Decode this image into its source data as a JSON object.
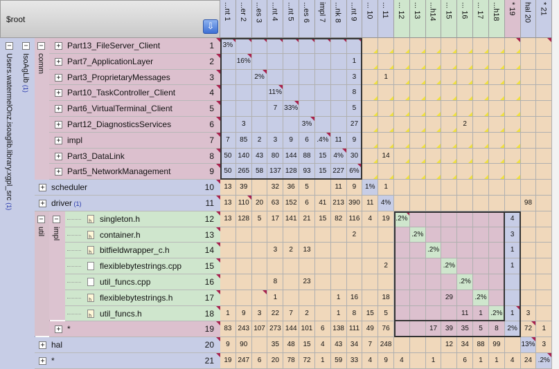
{
  "header": {
    "root_label": "$root",
    "sort_button_icon": "down-arrow-icon"
  },
  "tree": {
    "root_group": {
      "label": "Users.watermelOnz.isoaglib.library.xgpl_src",
      "count": "(1)"
    },
    "lib_group": {
      "label": "IsoAgLib",
      "count": "(1)"
    },
    "comm_group": {
      "label": "comm"
    },
    "util_group": {
      "label": "util"
    },
    "impl_group": {
      "label": "impl"
    }
  },
  "rows": [
    {
      "label": "Part13_FileServer_Client",
      "num": "1",
      "count": ""
    },
    {
      "label": "Part7_ApplicationLayer",
      "num": "2",
      "count": ""
    },
    {
      "label": "Part3_ProprietaryMessages",
      "num": "3",
      "count": ""
    },
    {
      "label": "Part10_TaskController_Client",
      "num": "4",
      "count": ""
    },
    {
      "label": "Part6_VirtualTerminal_Client",
      "num": "5",
      "count": ""
    },
    {
      "label": "Part12_DiagnosticsServices",
      "num": "6",
      "count": ""
    },
    {
      "label": "impl",
      "num": "7",
      "count": ""
    },
    {
      "label": "Part3_DataLink",
      "num": "8",
      "count": ""
    },
    {
      "label": "Part5_NetworkManagement",
      "num": "9",
      "count": ""
    },
    {
      "label": "scheduler",
      "num": "10",
      "count": ""
    },
    {
      "label": "driver",
      "num": "11",
      "count": "(1)"
    },
    {
      "label": "singleton.h",
      "num": "12",
      "count": ""
    },
    {
      "label": "container.h",
      "num": "13",
      "count": ""
    },
    {
      "label": "bitfieldwrapper_c.h",
      "num": "14",
      "count": ""
    },
    {
      "label": "flexiblebytestrings.cpp",
      "num": "15",
      "count": ""
    },
    {
      "label": "util_funcs.cpp",
      "num": "16",
      "count": ""
    },
    {
      "label": "flexiblebytestrings.h",
      "num": "17",
      "count": ""
    },
    {
      "label": "util_funcs.h",
      "num": "18",
      "count": ""
    },
    {
      "label": "*",
      "num": "19",
      "count": ""
    },
    {
      "label": "hal",
      "num": "20",
      "count": ""
    },
    {
      "label": "*",
      "num": "21",
      "count": ""
    }
  ],
  "columns": [
    "...nt 1",
    "...er 2",
    "...es 3",
    "...nt 4",
    "...nt 5",
    "...es 6",
    "impl 7",
    "...nk 8",
    "...nt 9",
    "... 10",
    "... 11",
    "... 12",
    "... 13",
    "...h14",
    "... 15",
    "... 16",
    "... 17",
    "...h18",
    "* 19",
    "hal 20",
    "* 21"
  ],
  "matrix": [
    [
      "3%",
      "",
      "",
      "",
      "",
      "",
      "",
      "",
      "",
      "",
      "",
      "",
      "",
      "",
      "",
      "",
      "",
      "",
      "",
      "",
      ""
    ],
    [
      "",
      "16%",
      "",
      "",
      "",
      "",
      "",
      "",
      "1",
      "",
      "",
      "",
      "",
      "",
      "",
      "",
      "",
      "",
      "",
      "",
      ""
    ],
    [
      "",
      "",
      "2%",
      "",
      "",
      "",
      "",
      "",
      "3",
      "",
      "1",
      "",
      "",
      "",
      "",
      "",
      "",
      "",
      "",
      "",
      ""
    ],
    [
      "",
      "",
      "",
      "11%",
      "",
      "",
      "",
      "",
      "8",
      "",
      "",
      "",
      "",
      "",
      "",
      "",
      "",
      "",
      "",
      "",
      ""
    ],
    [
      "",
      "",
      "",
      "7",
      "33%",
      "",
      "",
      "",
      "5",
      "",
      "",
      "",
      "",
      "",
      "",
      "",
      "",
      "",
      "",
      "",
      ""
    ],
    [
      "",
      "3",
      "",
      "",
      "",
      "3%",
      "",
      "",
      "27",
      "",
      "",
      "",
      "",
      "",
      "",
      "2",
      "",
      "",
      "",
      "",
      ""
    ],
    [
      "7",
      "85",
      "2",
      "3",
      "9",
      "6",
      ".4%",
      "11",
      "9",
      "",
      "",
      "",
      "",
      "",
      "",
      "",
      "",
      "",
      "",
      "",
      ""
    ],
    [
      "50",
      "140",
      "43",
      "80",
      "144",
      "88",
      "15",
      "4%",
      "30",
      "",
      "14",
      "",
      "",
      "",
      "",
      "",
      "",
      "",
      "",
      "",
      ""
    ],
    [
      "50",
      "265",
      "58",
      "137",
      "128",
      "93",
      "15",
      "227",
      "6%",
      "",
      "",
      "",
      "",
      "",
      "",
      "",
      "",
      "",
      "",
      "",
      ""
    ],
    [
      "13",
      "39",
      "",
      "32",
      "36",
      "5",
      "",
      "11",
      "9",
      "1%",
      "1",
      "",
      "",
      "",
      "",
      "",
      "",
      "",
      "",
      "",
      ""
    ],
    [
      "13",
      "110",
      "20",
      "63",
      "152",
      "6",
      "41",
      "213",
      "390",
      "11",
      "4%",
      "",
      "",
      "",
      "",
      "",
      "",
      "",
      "",
      "98",
      ""
    ],
    [
      "13",
      "128",
      "5",
      "17",
      "141",
      "21",
      "15",
      "82",
      "116",
      "4",
      "19",
      ".2%",
      "",
      "",
      "",
      "",
      "",
      "",
      "4",
      "",
      ""
    ],
    [
      "",
      "",
      "",
      "",
      "",
      "",
      "",
      "",
      "2",
      "",
      "",
      "",
      ".2%",
      "",
      "",
      "",
      "",
      "",
      "3",
      "",
      ""
    ],
    [
      "",
      "",
      "",
      "3",
      "2",
      "13",
      "",
      "",
      "",
      "",
      "",
      "",
      "",
      ".2%",
      "",
      "",
      "",
      "",
      "1",
      "",
      ""
    ],
    [
      "",
      "",
      "",
      "",
      "",
      "",
      "",
      "",
      "",
      "",
      "2",
      "",
      "",
      "",
      ".2%",
      "",
      "",
      "",
      "1",
      "",
      ""
    ],
    [
      "",
      "",
      "",
      "8",
      "",
      "23",
      "",
      "",
      "",
      "",
      "",
      "",
      "",
      "",
      "",
      ".2%",
      "",
      "",
      "",
      "",
      ""
    ],
    [
      "",
      "",
      "",
      "1",
      "",
      "",
      "",
      "1",
      "16",
      "",
      "18",
      "",
      "",
      "",
      "29",
      "",
      ".2%",
      "",
      "",
      "",
      ""
    ],
    [
      "1",
      "9",
      "3",
      "22",
      "7",
      "2",
      "",
      "1",
      "8",
      "15",
      "5",
      "",
      "",
      "",
      "",
      "11",
      "1",
      ".2%",
      "1",
      "3",
      ""
    ],
    [
      "83",
      "243",
      "107",
      "273",
      "144",
      "101",
      "6",
      "138",
      "111",
      "49",
      "76",
      "",
      "",
      "17",
      "39",
      "35",
      "5",
      "8",
      "2%",
      "72",
      "1"
    ],
    [
      "9",
      "90",
      "",
      "35",
      "48",
      "15",
      "4",
      "43",
      "34",
      "7",
      "248",
      "",
      "",
      "",
      "12",
      "34",
      "88",
      "99",
      "",
      "13%",
      "3"
    ],
    [
      "19",
      "247",
      "6",
      "20",
      "78",
      "72",
      "1",
      "59",
      "33",
      "4",
      "9",
      "4",
      "",
      "1",
      "",
      "6",
      "1",
      "1",
      "4",
      "24",
      ".2%"
    ]
  ],
  "corner_flags": [
    [
      0,
      0
    ],
    [
      0,
      1
    ],
    [
      0,
      2
    ],
    [
      0,
      3
    ],
    [
      0,
      4
    ],
    [
      0,
      5
    ],
    [
      0,
      6
    ],
    [
      0,
      7
    ],
    [
      0,
      8
    ],
    [
      0,
      18
    ],
    [
      0,
      20
    ],
    [
      1,
      1
    ],
    [
      2,
      2
    ],
    [
      3,
      3
    ],
    [
      4,
      4
    ],
    [
      5,
      5
    ],
    [
      6,
      6
    ],
    [
      7,
      7
    ],
    [
      8,
      8
    ],
    [
      10,
      1
    ],
    [
      11,
      11
    ],
    [
      16,
      2
    ],
    [
      17,
      18
    ],
    [
      18,
      19
    ],
    [
      19,
      19
    ],
    [
      20,
      20
    ]
  ]
}
